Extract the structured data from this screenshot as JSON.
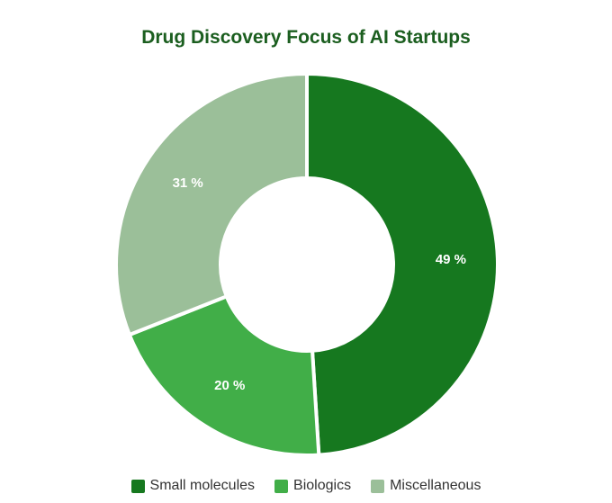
{
  "chart_data": {
    "type": "pie",
    "title": "Drug Discovery Focus of AI Startups",
    "slices": [
      {
        "label": "Small molecules",
        "value": 49,
        "display": "49 %",
        "color": "#16781f"
      },
      {
        "label": "Biologics",
        "value": 20,
        "display": "20 %",
        "color": "#41ae48"
      },
      {
        "label": "Miscellaneous",
        "value": 31,
        "display": "31 %",
        "color": "#9bbf99"
      }
    ],
    "legend_position": "bottom"
  }
}
